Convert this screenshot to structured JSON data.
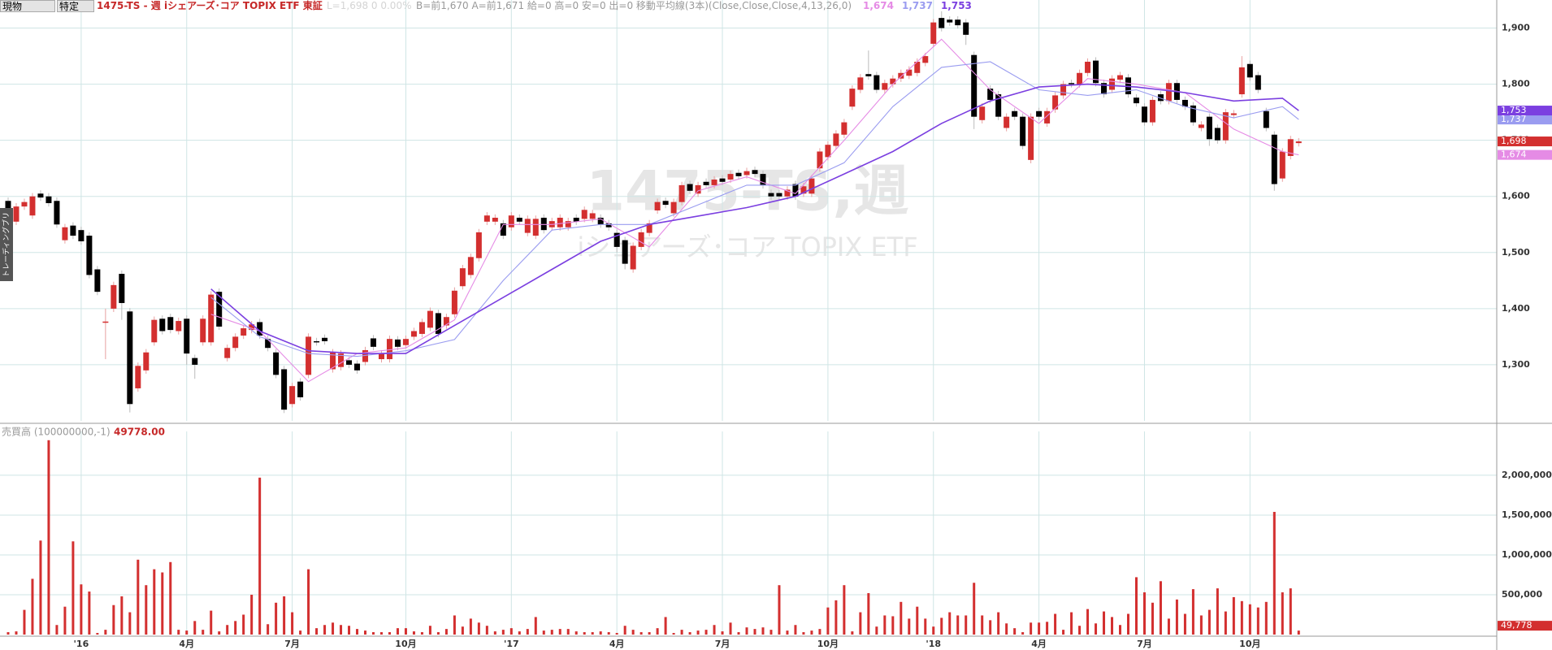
{
  "header": {
    "account": "現物",
    "tax": "特定",
    "symbol": "1475-TS - 週 iシェアーズ･コア TOPIX ETF 東証",
    "quote": "L=1,698 0 0.00%",
    "info": "B=前1,670 A=前1,671 給=0 高=0 安=0 出=0 移動平均線(3本)(Close,Close,Close,4,13,26,0)"
  },
  "side_tab": "トレーディングブリ",
  "chart_data": [
    {
      "type": "candlestick",
      "watermark": "1475-TS,週",
      "watermark_subtitle": "iシェアーズ･コア TOPIX ETF",
      "xlim": [
        -1,
        183.4
      ],
      "ylim": [
        1200,
        1950
      ],
      "yticks": [
        {
          "value": 1300,
          "label": "1,300"
        },
        {
          "value": 1400,
          "label": "1,400"
        },
        {
          "value": 1500,
          "label": "1,500"
        },
        {
          "value": 1600,
          "label": "1,600"
        },
        {
          "value": 1700,
          "label": "1,700"
        },
        {
          "value": 1800,
          "label": "1,800"
        },
        {
          "value": 1900,
          "label": "1,900"
        }
      ],
      "grid": true,
      "up_color": "#d32f2f",
      "down_color": "#000000",
      "last_label": "1,698",
      "open": [
        1592,
        1555,
        1582,
        1566,
        1605,
        1600,
        1592,
        1522,
        1548,
        1540,
        1530,
        1470,
        1375,
        1400,
        1462,
        1395,
        1258,
        1290,
        1340,
        1382,
        1385,
        1360,
        1382,
        1312,
        1340,
        1340,
        1430,
        1312,
        1330,
        1352,
        1362,
        1376,
        1346,
        1322,
        1292,
        1230,
        1270,
        1282,
        1342,
        1348,
        1292,
        1296,
        1308,
        1302,
        1305,
        1347,
        1310,
        1310,
        1345,
        1335,
        1350,
        1355,
        1366,
        1392,
        1370,
        1390,
        1440,
        1460,
        1490,
        1555,
        1555,
        1552,
        1545,
        1562,
        1535,
        1530,
        1562,
        1545,
        1545,
        1545,
        1562,
        1560,
        1560,
        1562,
        1552,
        1535,
        1522,
        1470,
        1510,
        1535,
        1575,
        1592,
        1570,
        1590,
        1622,
        1605,
        1626,
        1620,
        1632,
        1630,
        1642,
        1638,
        1647,
        1640,
        1606,
        1606,
        1600,
        1622,
        1605,
        1605,
        1650,
        1670,
        1690,
        1710,
        1760,
        1790,
        1818,
        1816,
        1790,
        1800,
        1810,
        1815,
        1820,
        1838,
        1872,
        1918,
        1915,
        1915,
        1910,
        1852,
        1736,
        1792,
        1782,
        1722,
        1752,
        1742,
        1665,
        1752,
        1730,
        1755,
        1780,
        1802,
        1800,
        1820,
        1842,
        1802,
        1790,
        1808,
        1812,
        1776,
        1760,
        1732,
        1782,
        1770,
        1802,
        1772,
        1762,
        1722,
        1742,
        1722,
        1700,
        1745,
        1782,
        1836,
        1816,
        1752,
        1710,
        1632,
        1672,
        1695
      ],
      "high": [
        1598,
        1588,
        1596,
        1606,
        1611,
        1606,
        1598,
        1551,
        1554,
        1546,
        1536,
        1476,
        1400,
        1448,
        1468,
        1401,
        1304,
        1328,
        1386,
        1388,
        1391,
        1384,
        1388,
        1318,
        1388,
        1431,
        1436,
        1336,
        1356,
        1371,
        1378,
        1382,
        1352,
        1328,
        1298,
        1268,
        1276,
        1356,
        1348,
        1354,
        1328,
        1326,
        1314,
        1308,
        1332,
        1353,
        1326,
        1352,
        1351,
        1352,
        1366,
        1382,
        1402,
        1398,
        1391,
        1438,
        1478,
        1498,
        1542,
        1572,
        1568,
        1558,
        1572,
        1568,
        1566,
        1566,
        1568,
        1562,
        1568,
        1562,
        1568,
        1582,
        1576,
        1568,
        1558,
        1541,
        1528,
        1518,
        1542,
        1558,
        1596,
        1598,
        1596,
        1626,
        1628,
        1626,
        1632,
        1636,
        1638,
        1646,
        1648,
        1651,
        1653,
        1646,
        1612,
        1612,
        1618,
        1628,
        1624,
        1638,
        1686,
        1698,
        1718,
        1738,
        1798,
        1818,
        1860,
        1822,
        1808,
        1816,
        1826,
        1832,
        1846,
        1856,
        1916,
        1930,
        1921,
        1921,
        1916,
        1858,
        1766,
        1798,
        1788,
        1748,
        1758,
        1748,
        1748,
        1758,
        1758,
        1786,
        1806,
        1808,
        1826,
        1846,
        1848,
        1808,
        1816,
        1822,
        1818,
        1782,
        1766,
        1778,
        1788,
        1808,
        1808,
        1778,
        1768,
        1734,
        1748,
        1728,
        1756,
        1754,
        1850,
        1842,
        1822,
        1758,
        1716,
        1686,
        1708,
        1704
      ],
      "low": [
        1566,
        1549,
        1576,
        1560,
        1592,
        1582,
        1544,
        1516,
        1524,
        1514,
        1454,
        1424,
        1310,
        1394,
        1380,
        1215,
        1252,
        1284,
        1334,
        1354,
        1356,
        1354,
        1300,
        1275,
        1334,
        1334,
        1362,
        1306,
        1324,
        1346,
        1356,
        1346,
        1324,
        1276,
        1214,
        1224,
        1236,
        1276,
        1334,
        1336,
        1286,
        1290,
        1294,
        1284,
        1299,
        1326,
        1304,
        1304,
        1326,
        1329,
        1344,
        1349,
        1360,
        1349,
        1364,
        1384,
        1434,
        1454,
        1484,
        1549,
        1549,
        1524,
        1539,
        1549,
        1529,
        1524,
        1534,
        1539,
        1539,
        1539,
        1549,
        1554,
        1554,
        1544,
        1539,
        1500,
        1470,
        1464,
        1504,
        1529,
        1569,
        1579,
        1564,
        1584,
        1604,
        1599,
        1614,
        1614,
        1620,
        1624,
        1630,
        1632,
        1634,
        1614,
        1594,
        1594,
        1594,
        1594,
        1599,
        1599,
        1644,
        1664,
        1684,
        1704,
        1754,
        1784,
        1808,
        1784,
        1784,
        1794,
        1804,
        1809,
        1814,
        1832,
        1866,
        1894,
        1904,
        1899,
        1870,
        1720,
        1730,
        1766,
        1736,
        1716,
        1736,
        1684,
        1659,
        1736,
        1724,
        1749,
        1774,
        1794,
        1794,
        1814,
        1796,
        1776,
        1784,
        1802,
        1776,
        1760,
        1726,
        1726,
        1764,
        1764,
        1766,
        1754,
        1726,
        1716,
        1690,
        1694,
        1694,
        1739,
        1776,
        1806,
        1784,
        1716,
        1610,
        1626,
        1666,
        1689
      ],
      "close": [
        1572,
        1582,
        1590,
        1600,
        1598,
        1588,
        1550,
        1545,
        1530,
        1520,
        1460,
        1430,
        1377,
        1442,
        1410,
        1230,
        1298,
        1322,
        1380,
        1360,
        1362,
        1378,
        1320,
        1300,
        1382,
        1425,
        1368,
        1330,
        1350,
        1365,
        1372,
        1352,
        1330,
        1282,
        1220,
        1262,
        1242,
        1350,
        1340,
        1342,
        1322,
        1320,
        1300,
        1290,
        1326,
        1332,
        1320,
        1346,
        1332,
        1346,
        1360,
        1376,
        1396,
        1355,
        1385,
        1432,
        1472,
        1492,
        1536,
        1566,
        1562,
        1530,
        1566,
        1555,
        1560,
        1560,
        1540,
        1556,
        1562,
        1556,
        1555,
        1576,
        1570,
        1550,
        1545,
        1510,
        1480,
        1512,
        1536,
        1552,
        1590,
        1585,
        1590,
        1620,
        1610,
        1620,
        1620,
        1630,
        1626,
        1640,
        1636,
        1645,
        1640,
        1620,
        1600,
        1600,
        1612,
        1600,
        1618,
        1632,
        1680,
        1692,
        1712,
        1732,
        1792,
        1812,
        1814,
        1790,
        1802,
        1810,
        1820,
        1826,
        1840,
        1850,
        1910,
        1900,
        1910,
        1905,
        1888,
        1742,
        1760,
        1772,
        1742,
        1742,
        1742,
        1690,
        1742,
        1742,
        1752,
        1780,
        1800,
        1800,
        1820,
        1840,
        1802,
        1782,
        1810,
        1816,
        1782,
        1766,
        1732,
        1772,
        1770,
        1802,
        1772,
        1760,
        1732,
        1728,
        1702,
        1700,
        1750,
        1748,
        1830,
        1812,
        1790,
        1722,
        1622,
        1680,
        1702,
        1698
      ],
      "moving_averages": {
        "x": [
          25,
          31,
          37,
          43,
          49,
          55,
          61,
          67,
          73,
          79,
          85,
          91,
          97,
          103,
          109,
          115,
          121,
          127,
          133,
          139,
          145,
          151,
          157,
          159
        ],
        "series": [
          {
            "color": "#e58be5",
            "last_label": "1,674",
            "values": [
              1390,
              1360,
              1270,
              1320,
              1330,
              1380,
              1550,
              1550,
              1560,
              1510,
              1610,
              1635,
              1605,
              1700,
              1800,
              1880,
              1790,
              1730,
              1810,
              1800,
              1785,
              1720,
              1680,
              1674
            ]
          },
          {
            "color": "#9a9cf0",
            "last_label": "1,737",
            "values": [
              1420,
              1350,
              1320,
              1315,
              1325,
              1345,
              1450,
              1540,
              1550,
              1550,
              1585,
              1620,
              1620,
              1660,
              1760,
              1830,
              1840,
              1790,
              1780,
              1790,
              1760,
              1740,
              1760,
              1737
            ]
          },
          {
            "color": "#7b3fe0",
            "last_label": "1,753",
            "values": [
              1435,
              1360,
              1325,
              1320,
              1320,
              1370,
              1420,
              1470,
              1520,
              1550,
              1565,
              1580,
              1600,
              1640,
              1680,
              1730,
              1770,
              1795,
              1800,
              1795,
              1785,
              1770,
              1775,
              1753
            ]
          }
        ]
      }
    },
    {
      "type": "bar",
      "title": "売買高 (100000000,-1)",
      "header_value": "49778.00",
      "last_label": "49,778",
      "color": "#d32f2f",
      "xlim": [
        -1,
        183.4
      ],
      "ylim": [
        0,
        2550000
      ],
      "xticks": [
        {
          "value": 9,
          "label": "'16"
        },
        {
          "value": 22,
          "label": "4月"
        },
        {
          "value": 35,
          "label": "7月"
        },
        {
          "value": 49,
          "label": "10月"
        },
        {
          "value": 62,
          "label": "'17"
        },
        {
          "value": 75,
          "label": "4月"
        },
        {
          "value": 88,
          "label": "7月"
        },
        {
          "value": 101,
          "label": "10月"
        },
        {
          "value": 114,
          "label": "'18"
        },
        {
          "value": 127,
          "label": "4月"
        },
        {
          "value": 140,
          "label": "7月"
        },
        {
          "value": 153,
          "label": "10月"
        }
      ],
      "yticks": [
        {
          "value": 500000,
          "label": "500,000"
        },
        {
          "value": 1000000,
          "label": "1,000,000"
        },
        {
          "value": 1500000,
          "label": "1,500,000"
        },
        {
          "value": 2000000,
          "label": "2,000,000"
        }
      ],
      "grid": true,
      "values": [
        30000,
        40000,
        310000,
        700000,
        1180000,
        2440000,
        120000,
        350000,
        1170000,
        630000,
        540000,
        20000,
        60000,
        370000,
        480000,
        280000,
        940000,
        620000,
        820000,
        780000,
        910000,
        60000,
        50000,
        170000,
        60000,
        300000,
        40000,
        120000,
        170000,
        250000,
        500000,
        1970000,
        130000,
        400000,
        480000,
        280000,
        50000,
        820000,
        80000,
        120000,
        150000,
        120000,
        110000,
        70000,
        50000,
        30000,
        30000,
        30000,
        80000,
        80000,
        40000,
        30000,
        110000,
        30000,
        70000,
        240000,
        100000,
        200000,
        150000,
        110000,
        40000,
        60000,
        80000,
        40000,
        70000,
        220000,
        50000,
        60000,
        70000,
        70000,
        40000,
        30000,
        30000,
        40000,
        30000,
        20000,
        110000,
        60000,
        30000,
        30000,
        80000,
        220000,
        20000,
        60000,
        30000,
        50000,
        60000,
        120000,
        40000,
        150000,
        30000,
        90000,
        70000,
        90000,
        60000,
        620000,
        50000,
        120000,
        30000,
        50000,
        70000,
        340000,
        430000,
        620000,
        40000,
        280000,
        520000,
        100000,
        240000,
        230000,
        410000,
        200000,
        350000,
        200000,
        100000,
        210000,
        280000,
        240000,
        240000,
        650000,
        240000,
        180000,
        280000,
        140000,
        80000,
        30000,
        150000,
        150000,
        160000,
        260000,
        60000,
        280000,
        110000,
        320000,
        140000,
        290000,
        220000,
        120000,
        260000,
        720000,
        530000,
        400000,
        670000,
        200000,
        440000,
        260000,
        570000,
        240000,
        310000,
        580000,
        290000,
        470000,
        420000,
        380000,
        340000,
        410000,
        1540000,
        530000,
        580000,
        49778
      ]
    }
  ]
}
